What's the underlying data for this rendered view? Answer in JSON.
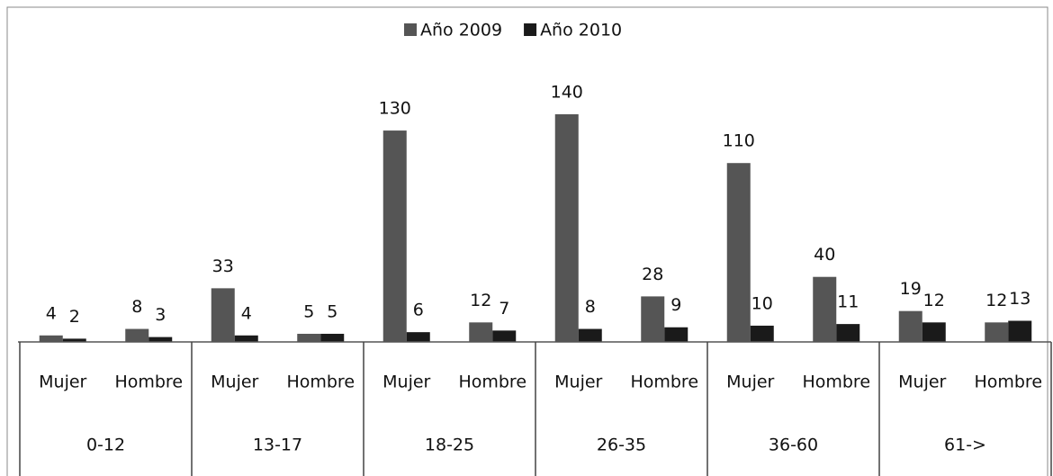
{
  "chart_data": {
    "type": "bar",
    "categories": [
      "Mujer",
      "Hombre",
      "Mujer",
      "Hombre",
      "Mujer",
      "Hombre",
      "Mujer",
      "Hombre",
      "Mujer",
      "Hombre",
      "Mujer",
      "Hombre"
    ],
    "groups": [
      "0-12",
      "13-17",
      "18-25",
      "26-35",
      "36-60",
      "61->"
    ],
    "series": [
      {
        "name": "Año 2009",
        "color": "#555555",
        "values": [
          4,
          8,
          33,
          5,
          130,
          12,
          140,
          28,
          110,
          40,
          19,
          12
        ]
      },
      {
        "name": "Año 2010",
        "color": "#1a1a1a",
        "values": [
          2,
          3,
          4,
          5,
          6,
          7,
          8,
          9,
          10,
          11,
          12,
          13
        ]
      }
    ],
    "legend": "top"
  }
}
